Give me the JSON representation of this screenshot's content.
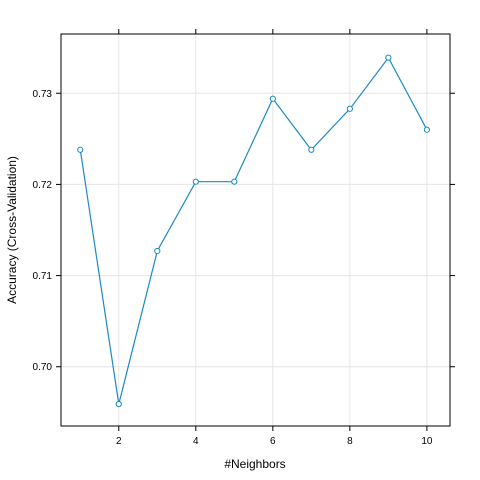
{
  "chart_data": {
    "type": "line",
    "title": "",
    "xlabel": "#Neighbors",
    "ylabel": "Accuracy (Cross-Validation)",
    "xlim": [
      0.5,
      10.6
    ],
    "ylim": [
      0.6935,
      0.7365
    ],
    "xticks": [
      2,
      4,
      6,
      8,
      10
    ],
    "yticks": [
      0.7,
      0.71,
      0.72,
      0.73
    ],
    "ytick_labels": [
      "0.70",
      "0.71",
      "0.72",
      "0.73"
    ],
    "grid": true,
    "legend": "none",
    "series_color": "#1c89c2",
    "x": [
      1,
      2,
      3,
      4,
      5,
      6,
      7,
      8,
      9,
      10
    ],
    "y": [
      0.7238,
      0.6959,
      0.7127,
      0.7203,
      0.7203,
      0.7294,
      0.7238,
      0.7283,
      0.7339,
      0.726
    ]
  }
}
